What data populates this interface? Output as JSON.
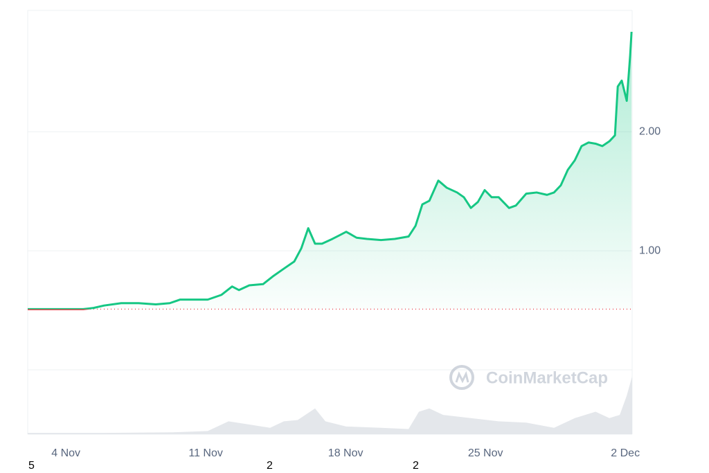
{
  "chart_data": {
    "type": "line",
    "x": [
      2.09,
      2.79,
      3.48,
      4.17,
      4.87,
      5.39,
      5.91,
      6.77,
      7.64,
      8.5,
      9.2,
      9.72,
      10.41,
      11.1,
      11.79,
      12.32,
      12.66,
      13.18,
      13.87,
      14.4,
      14.91,
      15.43,
      15.78,
      16.13,
      16.47,
      16.82,
      17.34,
      17.69,
      18.03,
      18.55,
      19.07,
      19.77,
      20.46,
      21.15,
      21.5,
      21.84,
      22.19,
      22.64,
      23.06,
      23.58,
      23.92,
      24.27,
      24.62,
      24.96,
      25.31,
      25.66,
      26.18,
      26.52,
      27.04,
      27.56,
      28.08,
      28.43,
      28.77,
      29.12,
      29.47,
      29.81,
      30.16,
      30.51,
      30.85,
      31.2,
      31.48,
      31.62,
      31.82,
      32.07,
      32.24,
      32.31
    ],
    "series": [
      {
        "color": "#16c784",
        "values": [
          0.51,
          0.51,
          0.51,
          0.51,
          0.51,
          0.52,
          0.54,
          0.56,
          0.56,
          0.55,
          0.56,
          0.59,
          0.59,
          0.59,
          0.63,
          0.7,
          0.67,
          0.71,
          0.72,
          0.79,
          0.85,
          0.91,
          1.02,
          1.19,
          1.06,
          1.06,
          1.1,
          1.13,
          1.16,
          1.11,
          1.1,
          1.09,
          1.1,
          1.12,
          1.21,
          1.39,
          1.42,
          1.59,
          1.53,
          1.49,
          1.45,
          1.36,
          1.41,
          1.51,
          1.45,
          1.45,
          1.36,
          1.38,
          1.48,
          1.49,
          1.47,
          1.49,
          1.55,
          1.68,
          1.76,
          1.88,
          1.91,
          1.9,
          1.88,
          1.92,
          1.97,
          2.38,
          2.43,
          2.26,
          2.64,
          2.84
        ]
      }
    ],
    "below_color": "#ea3943",
    "baseline": 0.51,
    "xlim": [
      2.09,
      32.34
    ],
    "ylim": [
      0,
      3.02
    ],
    "yticks": [
      {
        "value": 1,
        "label": "1.00"
      },
      {
        "value": 2,
        "label": "2.00"
      }
    ],
    "xticks": [
      {
        "value": 4,
        "label": "4 Nov"
      },
      {
        "value": 11,
        "label": "11 Nov"
      },
      {
        "value": 18,
        "label": "18 Nov"
      },
      {
        "value": 25,
        "label": "25 Nov"
      },
      {
        "value": 32,
        "label": "2 Dec"
      }
    ],
    "grid": true,
    "volume": {
      "color": "#e4e7eb",
      "vlim": [
        0,
        1
      ],
      "x": [
        2.09,
        5.91,
        9.37,
        11.1,
        12.14,
        13.18,
        14.22,
        14.91,
        15.6,
        16.47,
        16.99,
        18.03,
        19.77,
        21.15,
        21.67,
        22.19,
        22.88,
        24.27,
        25.66,
        27.04,
        28.43,
        29.47,
        30.51,
        31.2,
        31.72,
        32.07,
        32.34
      ],
      "values": [
        0.02,
        0.02,
        0.03,
        0.05,
        0.2,
        0.15,
        0.1,
        0.2,
        0.22,
        0.4,
        0.2,
        0.12,
        0.1,
        0.08,
        0.35,
        0.4,
        0.3,
        0.25,
        0.2,
        0.18,
        0.1,
        0.25,
        0.35,
        0.25,
        0.3,
        0.6,
        0.9
      ]
    },
    "watermark": "CoinMarketCap"
  },
  "footer_labels": [
    "5",
    "2",
    "2"
  ]
}
